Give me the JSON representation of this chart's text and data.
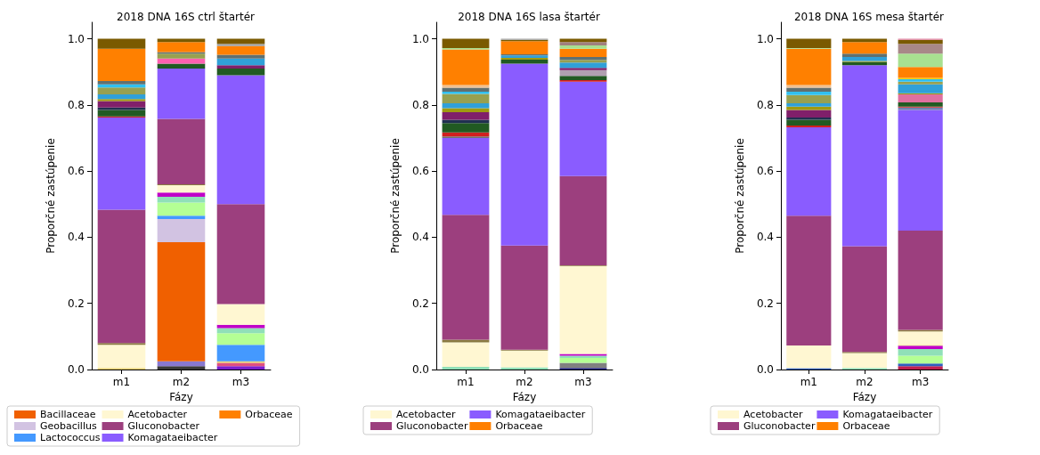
{
  "chart_data": [
    {
      "type": "bar",
      "title": "2018 DNA 16S ctrl štartér",
      "xlabel": "Fázy",
      "ylabel": "Proporčné zastúpenie",
      "categories": [
        "m1",
        "m2",
        "m3"
      ],
      "stacked": true,
      "legend": "bottom",
      "grid": false,
      "ylim": [
        0,
        1.05
      ],
      "yticks": [
        {
          "value": 0,
          "label": "0.0"
        },
        {
          "value": 0.2,
          "label": "0.2"
        },
        {
          "value": 0.4,
          "label": "0.4"
        },
        {
          "value": 0.6,
          "label": "0.6"
        },
        {
          "value": 0.8,
          "label": "0.8"
        },
        {
          "value": 1,
          "label": "1.0"
        }
      ],
      "series": [
        {
          "color": "#3a3a3a",
          "values": [
            null,
            0.01,
            null
          ]
        },
        {
          "color": "#8878d0",
          "values": [
            null,
            0.015,
            null
          ]
        },
        {
          "color": "#7a1fd0",
          "values": [
            null,
            null,
            0.01
          ]
        },
        {
          "color": "#e05080",
          "values": [
            null,
            null,
            0.01
          ]
        },
        {
          "color": "#e8d070",
          "values": [
            0.005,
            null,
            0.005
          ]
        },
        {
          "name": "Bacillaceae",
          "color": "#f06000",
          "values": [
            null,
            0.36,
            null
          ]
        },
        {
          "name": "Geobacillus",
          "color": "#d2c3e2",
          "values": [
            null,
            0.07,
            null
          ]
        },
        {
          "name": "Lactococcus",
          "color": "#4499ff",
          "values": [
            null,
            0.01,
            0.05
          ]
        },
        {
          "color": "#b4ff94",
          "values": [
            null,
            0.04,
            0.035
          ]
        },
        {
          "color": "#90e0b8",
          "values": [
            null,
            0.017,
            0.015
          ]
        },
        {
          "color": "#c000c8",
          "values": [
            null,
            0.013,
            0.01
          ]
        },
        {
          "name": "Acetobacter",
          "color": "#fff7d2",
          "values": [
            0.07,
            0.022,
            0.063
          ]
        },
        {
          "color": "#8a7a40",
          "values": [
            0.005,
            0.003,
            null
          ]
        },
        {
          "name": "Gluconobacter",
          "color": "#9c3f7e",
          "values": [
            0.403,
            0.198,
            0.302
          ]
        },
        {
          "name": "Komagataeibacter",
          "color": "#8a5cff",
          "values": [
            0.279,
            0.152,
            0.39
          ]
        },
        {
          "color": "#d02020",
          "values": [
            0.003,
            null,
            null
          ]
        },
        {
          "color": "#215a22",
          "values": [
            0.02,
            0.015,
            0.02
          ]
        },
        {
          "color": "#203050",
          "values": [
            0.007,
            null,
            null
          ]
        },
        {
          "color": "#801f6a",
          "values": [
            0.02,
            null,
            0.01
          ]
        },
        {
          "color": "#ff60b0",
          "values": [
            null,
            0.015,
            null
          ]
        },
        {
          "color": "#a09a10",
          "values": [
            0.006,
            null,
            null
          ]
        },
        {
          "color": "#30a0d8",
          "values": [
            0.014,
            null,
            0.02
          ]
        },
        {
          "color": "#97a050",
          "values": [
            0.021,
            0.015,
            null
          ]
        },
        {
          "color": "#30c0f0",
          "values": [
            0.009,
            null,
            null
          ]
        },
        {
          "color": "#607070",
          "values": [
            0.01,
            0.005,
            0.012
          ]
        },
        {
          "name": "Orbaceae",
          "color": "#ff8000",
          "values": [
            0.098,
            0.03,
            0.026
          ]
        },
        {
          "color": "#a0a0a0",
          "values": [
            null,
            null,
            0.007
          ]
        },
        {
          "color": "#7a5a00",
          "values": [
            0.03,
            0.01,
            0.015
          ]
        }
      ]
    },
    {
      "type": "bar",
      "title": "2018 DNA 16S lasa štartér",
      "xlabel": "Fázy",
      "ylabel": "Proporčné zastúpenie",
      "categories": [
        "m1",
        "m2",
        "m3"
      ],
      "stacked": true,
      "legend": "bottom",
      "grid": false,
      "ylim": [
        0,
        1.05
      ],
      "yticks": [
        {
          "value": 0,
          "label": "0.0"
        },
        {
          "value": 0.2,
          "label": "0.2"
        },
        {
          "value": 0.4,
          "label": "0.4"
        },
        {
          "value": 0.6,
          "label": "0.6"
        },
        {
          "value": 0.8,
          "label": "0.8"
        },
        {
          "value": 1,
          "label": "1.0"
        }
      ],
      "series": [
        {
          "color": "#202080",
          "values": [
            null,
            null,
            0.005
          ]
        },
        {
          "color": "#808080",
          "values": [
            null,
            null,
            0.015
          ]
        },
        {
          "color": "#b4ff94",
          "values": [
            null,
            null,
            0.015
          ]
        },
        {
          "color": "#90e0b8",
          "values": [
            0.008,
            0.007,
            0.007
          ]
        },
        {
          "color": "#c000c8",
          "values": [
            null,
            null,
            0.005
          ]
        },
        {
          "name": "Acetobacter",
          "color": "#fff7d2",
          "values": [
            0.074,
            0.05,
            0.266
          ]
        },
        {
          "color": "#8a7a40",
          "values": [
            0.008,
            0.003,
            0.002
          ]
        },
        {
          "name": "Gluconobacter",
          "color": "#9c3f7e",
          "values": [
            0.378,
            0.315,
            0.27
          ]
        },
        {
          "name": "Komagataeibacter",
          "color": "#8a5cff",
          "values": [
            0.232,
            0.55,
            0.285
          ]
        },
        {
          "color": "#707070",
          "values": [
            0.005,
            null,
            null
          ]
        },
        {
          "color": "#d02020",
          "values": [
            0.012,
            null,
            0.005
          ]
        },
        {
          "color": "#215a22",
          "values": [
            0.028,
            0.012,
            0.013
          ]
        },
        {
          "color": "#203050",
          "values": [
            0.01,
            null,
            null
          ]
        },
        {
          "color": "#b0a0b0",
          "values": [
            null,
            null,
            0.017
          ]
        },
        {
          "color": "#801f6a",
          "values": [
            0.023,
            null,
            0.007
          ]
        },
        {
          "color": "#a09a10",
          "values": [
            0.012,
            0.005,
            null
          ]
        },
        {
          "color": "#30a0d8",
          "values": [
            0.015,
            0.008,
            0.016
          ]
        },
        {
          "color": "#97a050",
          "values": [
            0.028,
            null,
            0.008
          ]
        },
        {
          "color": "#30c0f0",
          "values": [
            0.007,
            null,
            null
          ]
        },
        {
          "color": "#607070",
          "values": [
            0.012,
            0.003,
            0.009
          ]
        },
        {
          "color": "#f0c090",
          "values": [
            0.008,
            null,
            null
          ]
        },
        {
          "name": "Orbaceae",
          "color": "#ff8000",
          "values": [
            0.108,
            0.04,
            0.025
          ]
        },
        {
          "color": "#a8e090",
          "values": [
            0.004,
            null,
            0.01
          ]
        },
        {
          "color": "#a08080",
          "values": [
            null,
            null,
            0.01
          ]
        },
        {
          "color": "#7a5a00",
          "values": [
            0.028,
            0.004,
            0.01
          ]
        },
        {
          "color": "#a0a0a0",
          "values": [
            null,
            0.003,
            null
          ]
        }
      ]
    },
    {
      "type": "bar",
      "title": "2018 DNA 16S mesa štartér",
      "xlabel": "Fázy",
      "ylabel": "Proporčné zastúpenie",
      "categories": [
        "m1",
        "m2",
        "m3"
      ],
      "stacked": true,
      "legend": "bottom",
      "grid": false,
      "ylim": [
        0,
        1.05
      ],
      "yticks": [
        {
          "value": 0,
          "label": "0.0"
        },
        {
          "value": 0.2,
          "label": "0.2"
        },
        {
          "value": 0.4,
          "label": "0.4"
        },
        {
          "value": 0.6,
          "label": "0.6"
        },
        {
          "value": 0.8,
          "label": "0.8"
        },
        {
          "value": 1,
          "label": "1.0"
        }
      ],
      "series": [
        {
          "color": "#c02050",
          "values": [
            null,
            null,
            0.01
          ]
        },
        {
          "color": "#3060c0",
          "values": [
            0.004,
            null,
            0.008
          ]
        },
        {
          "color": "#b4ff94",
          "values": [
            null,
            null,
            0.024
          ]
        },
        {
          "color": "#90e0b8",
          "values": [
            null,
            0.005,
            0.02
          ]
        },
        {
          "color": "#c000c8",
          "values": [
            null,
            null,
            0.01
          ]
        },
        {
          "color": "#f0e890",
          "values": [
            null,
            null,
            0.003
          ]
        },
        {
          "name": "Acetobacter",
          "color": "#fff7d2",
          "values": [
            0.069,
            0.045,
            0.04
          ]
        },
        {
          "color": "#8a7a40",
          "values": [
            null,
            0.003,
            0.005
          ]
        },
        {
          "name": "Gluconobacter",
          "color": "#9c3f7e",
          "values": [
            0.392,
            0.32,
            0.3
          ]
        },
        {
          "name": "Komagataeibacter",
          "color": "#8a5cff",
          "values": [
            0.267,
            0.547,
            0.365
          ]
        },
        {
          "color": "#7080b0",
          "values": [
            null,
            null,
            0.007
          ]
        },
        {
          "color": "#d02020",
          "values": [
            0.006,
            null,
            0.003
          ]
        },
        {
          "color": "#215a22",
          "values": [
            0.017,
            0.01,
            0.013
          ]
        },
        {
          "color": "#203050",
          "values": [
            0.007,
            null,
            null
          ]
        },
        {
          "color": "#e070a0",
          "values": [
            null,
            null,
            0.024
          ]
        },
        {
          "color": "#801f6a",
          "values": [
            0.023,
            null,
            null
          ]
        },
        {
          "color": "#a09a10",
          "values": [
            0.01,
            0.003,
            0.003
          ]
        },
        {
          "color": "#30a0d8",
          "values": [
            0.01,
            0.012,
            0.027
          ]
        },
        {
          "color": "#97a050",
          "values": [
            0.025,
            null,
            0.008
          ]
        },
        {
          "color": "#30c0f0",
          "values": [
            0.01,
            null,
            0.008
          ]
        },
        {
          "color": "#607070",
          "values": [
            0.012,
            0.01,
            null
          ]
        },
        {
          "color": "#f0c090",
          "values": [
            0.008,
            null,
            null
          ]
        },
        {
          "color": "#ffd000",
          "values": [
            null,
            null,
            0.004
          ]
        },
        {
          "name": "Orbaceae",
          "color": "#ff8000",
          "values": [
            0.11,
            0.035,
            0.033
          ]
        },
        {
          "color": "#a8e090",
          "values": [
            0.002,
            null,
            0.04
          ]
        },
        {
          "color": "#a88888",
          "values": [
            null,
            null,
            0.03
          ]
        },
        {
          "color": "#7a5a00",
          "values": [
            0.028,
            0.01,
            0.012
          ]
        },
        {
          "color": "#e080a0",
          "values": [
            null,
            null,
            0.003
          ]
        }
      ]
    }
  ]
}
